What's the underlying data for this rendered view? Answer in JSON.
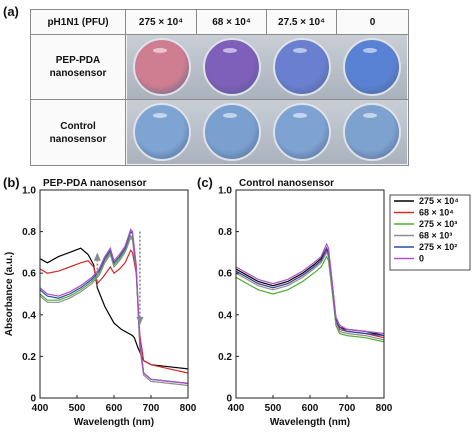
{
  "panel_labels": {
    "a": "(a)",
    "b": "(b)",
    "c": "(c)"
  },
  "plate": {
    "header_label": "pH1N1 (PFU)",
    "columns": [
      "275 × 10⁴",
      "68 × 10⁴",
      "27.5 × 10⁴",
      "0"
    ],
    "rows": [
      {
        "label_line1": "PEP-PDA",
        "label_line2": "nanosensor",
        "well_colors": [
          "#cf7e92",
          "#7e5fb9",
          "#6a7fd0",
          "#5a82d4"
        ]
      },
      {
        "label_line1": "Control",
        "label_line2": "nanosensor",
        "well_colors": [
          "#7ea4d4",
          "#7aa0d0",
          "#7ea2d2",
          "#7ea2d0"
        ]
      }
    ]
  },
  "legend": {
    "items": [
      {
        "label": "275 × 10⁴",
        "color": "#000000"
      },
      {
        "label": "68 × 10⁴",
        "color": "#d42a2a"
      },
      {
        "label": "275 × 10³",
        "color": "#4caf2e"
      },
      {
        "label": "68 × 10³",
        "color": "#8f8f8f"
      },
      {
        "label": "275 × 10²",
        "color": "#2c4aa8"
      },
      {
        "label": "0",
        "color": "#b050c8"
      }
    ]
  },
  "chart_data": [
    {
      "type": "line",
      "title": "PEP-PDA nanosensor",
      "xlabel": "Wavelength (nm)",
      "ylabel": "Absorbance (a.u.)",
      "xlim": [
        400,
        800
      ],
      "ylim": [
        0,
        1.0
      ],
      "xticks": [
        400,
        500,
        600,
        700,
        800
      ],
      "yticks": [
        0,
        0.2,
        0.4,
        0.6,
        0.8,
        1.0
      ],
      "xtick_labels": [
        "400",
        "500",
        "600",
        "700",
        "800"
      ],
      "ytick_labels": [
        "0",
        "0.2",
        "0.4",
        "0.6",
        "0.8",
        "1.0"
      ],
      "series": [
        {
          "name": "275 × 10⁴",
          "color": "#000000",
          "x": [
            400,
            420,
            450,
            480,
            510,
            530,
            545,
            555,
            575,
            600,
            620,
            640,
            650,
            655,
            665,
            680,
            700,
            750,
            800
          ],
          "y": [
            0.67,
            0.65,
            0.68,
            0.7,
            0.72,
            0.69,
            0.64,
            0.53,
            0.44,
            0.36,
            0.33,
            0.31,
            0.3,
            0.29,
            0.24,
            0.18,
            0.16,
            0.15,
            0.14
          ]
        },
        {
          "name": "68 × 10⁴",
          "color": "#d42a2a",
          "x": [
            400,
            420,
            450,
            480,
            510,
            530,
            545,
            555,
            570,
            590,
            600,
            615,
            630,
            645,
            650,
            660,
            670,
            680,
            700,
            750,
            800
          ],
          "y": [
            0.62,
            0.6,
            0.61,
            0.63,
            0.65,
            0.66,
            0.63,
            0.55,
            0.58,
            0.63,
            0.6,
            0.62,
            0.65,
            0.71,
            0.7,
            0.6,
            0.3,
            0.18,
            0.16,
            0.14,
            0.12
          ]
        },
        {
          "name": "275 × 10³",
          "color": "#4caf2e",
          "x": [
            400,
            420,
            450,
            480,
            510,
            540,
            560,
            575,
            590,
            600,
            615,
            630,
            645,
            650,
            660,
            670,
            680,
            700,
            750,
            800
          ],
          "y": [
            0.5,
            0.47,
            0.47,
            0.49,
            0.52,
            0.56,
            0.6,
            0.66,
            0.7,
            0.64,
            0.67,
            0.71,
            0.78,
            0.77,
            0.62,
            0.25,
            0.12,
            0.09,
            0.08,
            0.07
          ]
        },
        {
          "name": "68 × 10³",
          "color": "#8f8f8f",
          "x": [
            400,
            420,
            450,
            480,
            510,
            540,
            560,
            575,
            590,
            600,
            615,
            630,
            645,
            650,
            660,
            670,
            680,
            700,
            750,
            800
          ],
          "y": [
            0.49,
            0.46,
            0.46,
            0.48,
            0.51,
            0.55,
            0.59,
            0.65,
            0.69,
            0.63,
            0.66,
            0.7,
            0.77,
            0.76,
            0.61,
            0.24,
            0.11,
            0.08,
            0.07,
            0.06
          ]
        },
        {
          "name": "275 × 10²",
          "color": "#2c4aa8",
          "x": [
            400,
            420,
            450,
            480,
            510,
            540,
            560,
            575,
            590,
            600,
            615,
            630,
            645,
            650,
            660,
            670,
            680,
            700,
            750,
            800
          ],
          "y": [
            0.52,
            0.49,
            0.48,
            0.5,
            0.53,
            0.57,
            0.61,
            0.67,
            0.71,
            0.65,
            0.68,
            0.72,
            0.8,
            0.79,
            0.63,
            0.26,
            0.12,
            0.09,
            0.08,
            0.07
          ]
        },
        {
          "name": "0",
          "color": "#b050c8",
          "x": [
            400,
            420,
            450,
            480,
            510,
            540,
            560,
            575,
            590,
            600,
            615,
            630,
            645,
            650,
            660,
            670,
            680,
            700,
            750,
            800
          ],
          "y": [
            0.53,
            0.5,
            0.49,
            0.51,
            0.54,
            0.58,
            0.62,
            0.68,
            0.72,
            0.66,
            0.69,
            0.73,
            0.81,
            0.8,
            0.64,
            0.27,
            0.12,
            0.09,
            0.08,
            0.07
          ]
        }
      ]
    },
    {
      "type": "line",
      "title": "Control nanosensor",
      "xlabel": "Wavelength (nm)",
      "ylabel": "",
      "xlim": [
        400,
        800
      ],
      "ylim": [
        0,
        1.0
      ],
      "xticks": [
        400,
        500,
        600,
        700,
        800
      ],
      "yticks": [
        0,
        0.2,
        0.4,
        0.6,
        0.8,
        1.0
      ],
      "xtick_labels": [
        "400",
        "500",
        "600",
        "700",
        "800"
      ],
      "ytick_labels": [
        "0",
        "0.2",
        "0.4",
        "0.6",
        "0.8",
        "1.0"
      ],
      "series": [
        {
          "name": "275 × 10⁴",
          "color": "#000000",
          "x": [
            400,
            430,
            460,
            500,
            540,
            580,
            610,
            630,
            645,
            650,
            660,
            670,
            680,
            700,
            750,
            800
          ],
          "y": [
            0.62,
            0.59,
            0.56,
            0.54,
            0.56,
            0.6,
            0.64,
            0.67,
            0.72,
            0.7,
            0.55,
            0.38,
            0.34,
            0.33,
            0.32,
            0.3
          ]
        },
        {
          "name": "68 × 10⁴",
          "color": "#d42a2a",
          "x": [
            400,
            430,
            460,
            500,
            540,
            580,
            610,
            630,
            645,
            650,
            660,
            670,
            680,
            700,
            750,
            800
          ],
          "y": [
            0.61,
            0.58,
            0.55,
            0.53,
            0.55,
            0.59,
            0.63,
            0.66,
            0.71,
            0.69,
            0.54,
            0.37,
            0.33,
            0.32,
            0.31,
            0.29
          ]
        },
        {
          "name": "275 × 10³",
          "color": "#4caf2e",
          "x": [
            400,
            430,
            460,
            500,
            540,
            580,
            610,
            630,
            645,
            650,
            660,
            670,
            680,
            700,
            750,
            800
          ],
          "y": [
            0.58,
            0.55,
            0.52,
            0.5,
            0.52,
            0.56,
            0.6,
            0.63,
            0.68,
            0.66,
            0.51,
            0.35,
            0.31,
            0.3,
            0.29,
            0.27
          ]
        },
        {
          "name": "68 × 10³",
          "color": "#8f8f8f",
          "x": [
            400,
            430,
            460,
            500,
            540,
            580,
            610,
            630,
            645,
            650,
            660,
            670,
            680,
            700,
            750,
            800
          ],
          "y": [
            0.6,
            0.57,
            0.54,
            0.52,
            0.54,
            0.58,
            0.62,
            0.65,
            0.7,
            0.68,
            0.53,
            0.36,
            0.32,
            0.31,
            0.3,
            0.28
          ]
        },
        {
          "name": "275 × 10²",
          "color": "#2c4aa8",
          "x": [
            400,
            430,
            460,
            500,
            540,
            580,
            610,
            630,
            645,
            650,
            660,
            670,
            680,
            700,
            750,
            800
          ],
          "y": [
            0.61,
            0.58,
            0.55,
            0.53,
            0.55,
            0.59,
            0.63,
            0.66,
            0.72,
            0.7,
            0.55,
            0.38,
            0.34,
            0.32,
            0.31,
            0.3
          ]
        },
        {
          "name": "0",
          "color": "#b050c8",
          "x": [
            400,
            430,
            460,
            500,
            540,
            580,
            610,
            630,
            645,
            650,
            660,
            670,
            680,
            700,
            750,
            800
          ],
          "y": [
            0.63,
            0.6,
            0.57,
            0.55,
            0.57,
            0.61,
            0.65,
            0.68,
            0.74,
            0.72,
            0.56,
            0.39,
            0.35,
            0.33,
            0.32,
            0.31
          ]
        }
      ]
    }
  ]
}
